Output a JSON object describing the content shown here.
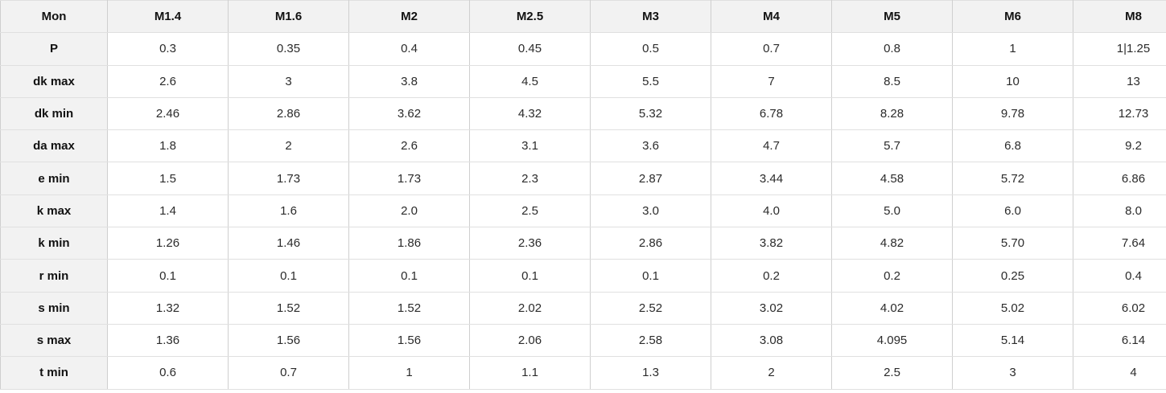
{
  "table": {
    "header_row": [
      "Mon",
      "M1.4",
      "M1.6",
      "M2",
      "M2.5",
      "M3",
      "M4",
      "M5",
      "M6",
      "M8"
    ],
    "rows": [
      {
        "label": "P",
        "values": [
          "0.3",
          "0.35",
          "0.4",
          "0.45",
          "0.5",
          "0.7",
          "0.8",
          "1",
          "1|1.25"
        ]
      },
      {
        "label": "dk max",
        "values": [
          "2.6",
          "3",
          "3.8",
          "4.5",
          "5.5",
          "7",
          "8.5",
          "10",
          "13"
        ]
      },
      {
        "label": "dk min",
        "values": [
          "2.46",
          "2.86",
          "3.62",
          "4.32",
          "5.32",
          "6.78",
          "8.28",
          "9.78",
          "12.73"
        ]
      },
      {
        "label": "da max",
        "values": [
          "1.8",
          "2",
          "2.6",
          "3.1",
          "3.6",
          "4.7",
          "5.7",
          "6.8",
          "9.2"
        ]
      },
      {
        "label": "e min",
        "values": [
          "1.5",
          "1.73",
          "1.73",
          "2.3",
          "2.87",
          "3.44",
          "4.58",
          "5.72",
          "6.86"
        ]
      },
      {
        "label": "k max",
        "values": [
          "1.4",
          "1.6",
          "2.0",
          "2.5",
          "3.0",
          "4.0",
          "5.0",
          "6.0",
          "8.0"
        ]
      },
      {
        "label": "k min",
        "values": [
          "1.26",
          "1.46",
          "1.86",
          "2.36",
          "2.86",
          "3.82",
          "4.82",
          "5.70",
          "7.64"
        ]
      },
      {
        "label": "r min",
        "values": [
          "0.1",
          "0.1",
          "0.1",
          "0.1",
          "0.1",
          "0.2",
          "0.2",
          "0.25",
          "0.4"
        ]
      },
      {
        "label": "s min",
        "values": [
          "1.32",
          "1.52",
          "1.52",
          "2.02",
          "2.52",
          "3.02",
          "4.02",
          "5.02",
          "6.02"
        ]
      },
      {
        "label": "s max",
        "values": [
          "1.36",
          "1.56",
          "1.56",
          "2.06",
          "2.58",
          "3.08",
          "4.095",
          "5.14",
          "6.14"
        ]
      },
      {
        "label": "t min",
        "values": [
          "0.6",
          "0.7",
          "1",
          "1.1",
          "1.3",
          "2",
          "2.5",
          "3",
          "4"
        ]
      }
    ]
  },
  "colors": {
    "header_background": "#f2f2f2",
    "cell_background": "#ffffff",
    "border_horizontal": "#e0e0e0",
    "border_vertical": "#cfcfcf",
    "header_text": "#111111",
    "cell_text": "#2b2b2b"
  }
}
